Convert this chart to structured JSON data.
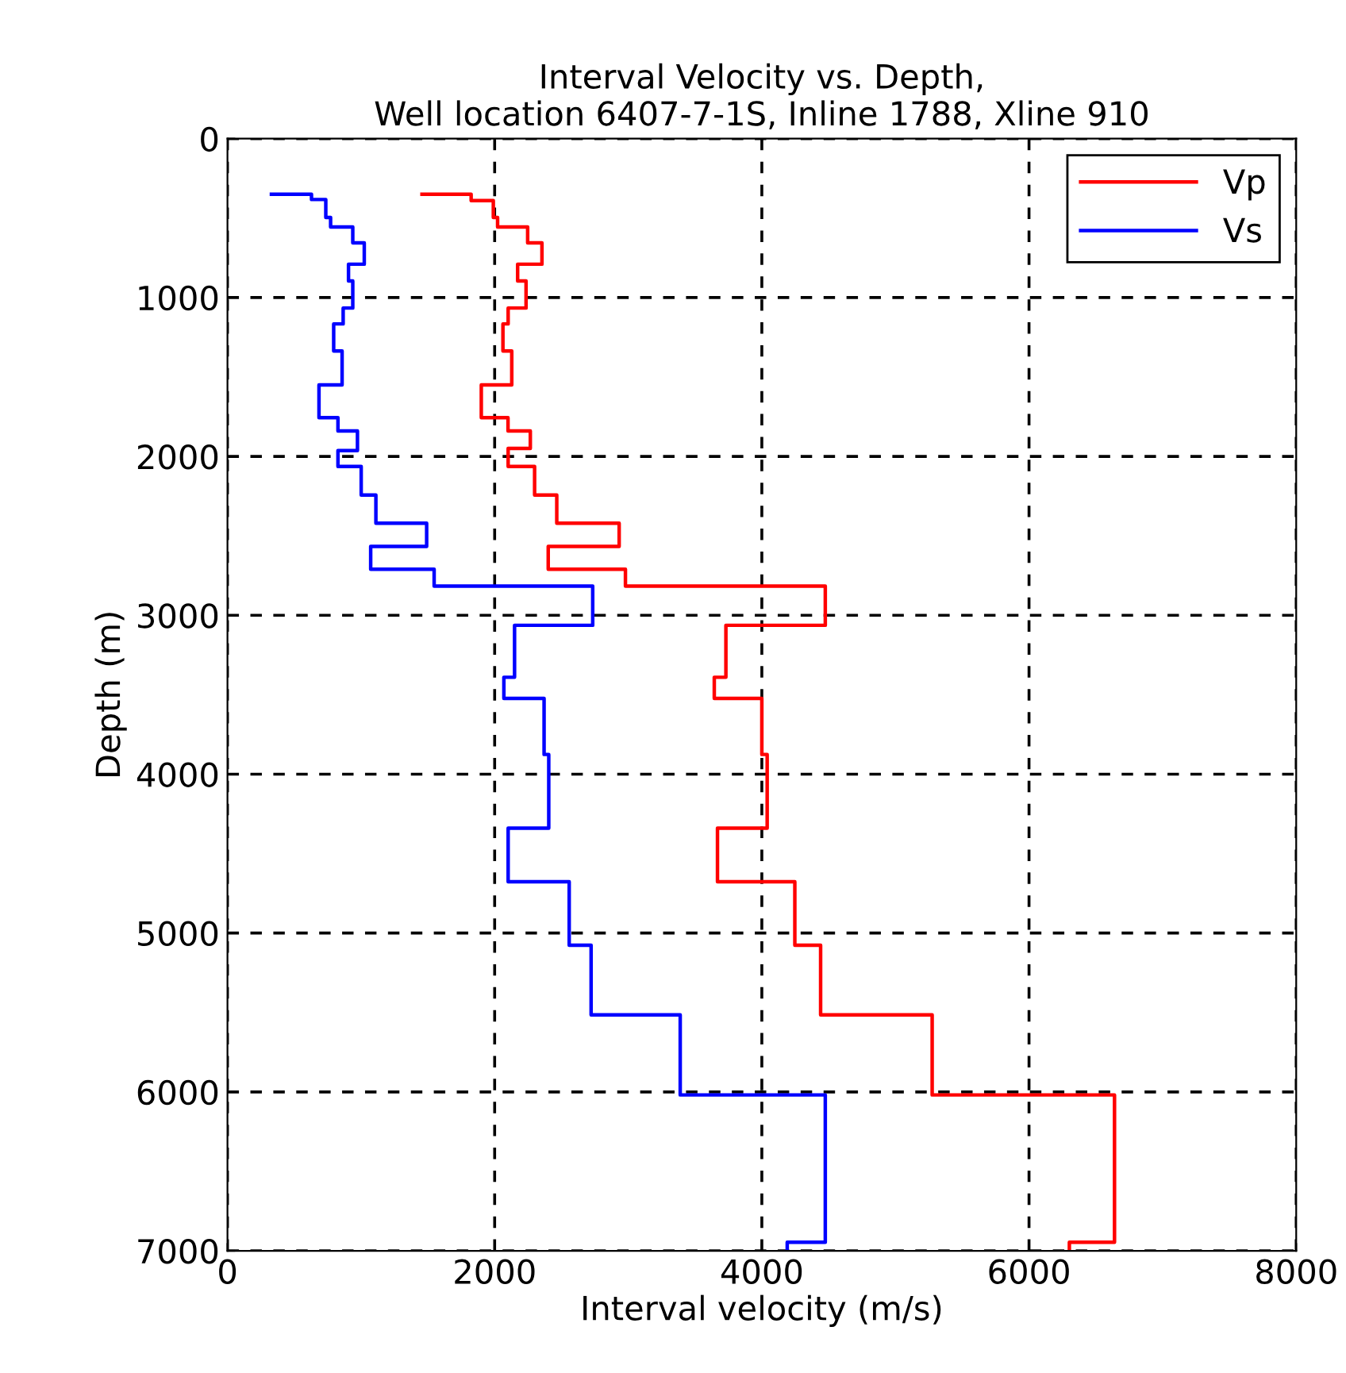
{
  "chart_data": {
    "type": "line",
    "title": "Interval Velocity vs. Depth,\nWell location 6407-7-1S, Inline 1788, Xline 910",
    "xlabel": "Interval velocity (m/s)",
    "ylabel": "Depth (m)",
    "xlim": [
      0,
      8000
    ],
    "xticks": [
      0,
      2000,
      4000,
      6000,
      8000
    ],
    "ylim": [
      7000,
      0
    ],
    "yticks": [
      0,
      1000,
      2000,
      3000,
      4000,
      5000,
      6000,
      7000
    ],
    "grid": true,
    "legend": "top right",
    "marker": "none",
    "line_style": "solid",
    "series": [
      {
        "name": "Vp",
        "color": "#ff0000",
        "x": [
          1456,
          1824,
          1824,
          1990,
          1990,
          2022,
          2022,
          2247,
          2247,
          2354,
          2354,
          2172,
          2172,
          2235,
          2235,
          2101,
          2101,
          2062,
          2062,
          2128,
          2128,
          1900,
          1900,
          2100,
          2100,
          2267,
          2267,
          2101,
          2101,
          2299,
          2299,
          2465,
          2465,
          2932,
          2932,
          2401,
          2401,
          2979,
          2979,
          4475,
          4475,
          3731,
          3731,
          3644,
          3644,
          4000,
          4000,
          4040,
          4040,
          3668,
          3668,
          4247,
          4247,
          4440,
          4440,
          5275,
          5275,
          6640,
          6640,
          6302,
          6302
        ],
        "values": [
          350,
          350,
          390,
          390,
          496,
          496,
          556,
          556,
          656,
          656,
          790,
          790,
          896,
          896,
          1066,
          1066,
          1166,
          1166,
          1336,
          1336,
          1550,
          1550,
          1756,
          1756,
          1840,
          1840,
          1950,
          1950,
          2063,
          2063,
          2243,
          2243,
          2420,
          2420,
          2566,
          2566,
          2710,
          2710,
          2816,
          2816,
          3063,
          3063,
          3390,
          3390,
          3523,
          3523,
          3876,
          3876,
          4340,
          4340,
          4677,
          4677,
          5077,
          5077,
          5515,
          5515,
          6019,
          6019,
          6946,
          6946,
          7000
        ]
      },
      {
        "name": "Vs",
        "color": "#0000ff",
        "x": [
          329,
          629,
          629,
          736,
          736,
          772,
          772,
          938,
          938,
          1024,
          1024,
          906,
          906,
          938,
          938,
          866,
          866,
          795,
          795,
          858,
          858,
          685,
          685,
          827,
          827,
          973,
          973,
          827,
          827,
          1001,
          1001,
          1111,
          1111,
          1491,
          1491,
          1072,
          1072,
          1547,
          1547,
          2734,
          2734,
          2149,
          2149,
          2069,
          2069,
          2370,
          2370,
          2405,
          2405,
          2101,
          2101,
          2558,
          2558,
          2722,
          2722,
          3389,
          3389,
          4475,
          4475,
          4190,
          4190
        ],
        "values": [
          350,
          350,
          383,
          383,
          496,
          496,
          556,
          556,
          656,
          656,
          790,
          790,
          896,
          896,
          1066,
          1066,
          1166,
          1166,
          1336,
          1336,
          1550,
          1550,
          1756,
          1756,
          1840,
          1840,
          1963,
          1963,
          2063,
          2063,
          2243,
          2243,
          2420,
          2420,
          2566,
          2566,
          2710,
          2710,
          2816,
          2816,
          3063,
          3063,
          3390,
          3390,
          3523,
          3523,
          3876,
          3876,
          4340,
          4340,
          4677,
          4677,
          5077,
          5077,
          5515,
          5515,
          6019,
          6019,
          6946,
          6946,
          7000
        ]
      }
    ]
  }
}
